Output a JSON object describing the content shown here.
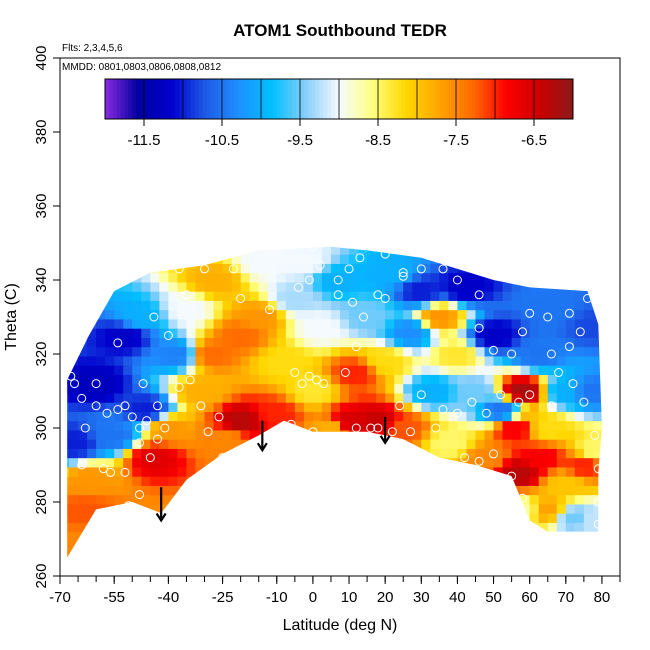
{
  "chart_data": {
    "type": "heatmap",
    "title": "ATOM1 Southbound TEDR",
    "annotations": [
      "Flts: 2,3,4,5,6",
      "MMDD: 0801,0803,0806,0808,0812"
    ],
    "xlabel": "Latitude (deg N)",
    "ylabel": "Theta (C)",
    "xlim": [
      -70,
      85
    ],
    "ylim": [
      260,
      400
    ],
    "x_ticks": [
      -70,
      -55,
      -40,
      -25,
      -10,
      0,
      10,
      20,
      30,
      40,
      50,
      60,
      70,
      80
    ],
    "x_tick_labels": [
      "-70",
      "-55",
      "-40",
      "-25",
      "-10",
      "0",
      "10",
      "20",
      "30",
      "40",
      "50",
      "60",
      "70",
      "80"
    ],
    "y_ticks": [
      260,
      280,
      300,
      320,
      340,
      360,
      380,
      400
    ],
    "y_tick_labels": [
      "260",
      "280",
      "300",
      "320",
      "340",
      "360",
      "380",
      "400"
    ],
    "colorbar": {
      "min": -12,
      "max": -6,
      "ticks": [
        -11.5,
        -10.5,
        -9.5,
        -8.5,
        -7.5,
        -6.5
      ],
      "tick_labels": [
        "-11.5",
        "-10.5",
        "-9.5",
        "-8.5",
        "-7.5",
        "-6.5"
      ],
      "colors": [
        "#8a2be2",
        "#0000a0",
        "#0000cd",
        "#1e5ae6",
        "#1e90ff",
        "#00bfff",
        "#87cefa",
        "#f5faff",
        "#ffff80",
        "#ffd700",
        "#ffa500",
        "#ff6a00",
        "#ff0000",
        "#cc0000",
        "#8b1a1a"
      ]
    },
    "coverage_boundary": [
      [
        -68,
        265
      ],
      [
        -60,
        278
      ],
      [
        -50,
        280
      ],
      [
        -42,
        277
      ],
      [
        -35,
        286
      ],
      [
        -25,
        293
      ],
      [
        -15,
        298
      ],
      [
        -8,
        302
      ],
      [
        0,
        299
      ],
      [
        15,
        299
      ],
      [
        25,
        297
      ],
      [
        35,
        292
      ],
      [
        45,
        290
      ],
      [
        55,
        287
      ],
      [
        60,
        275
      ],
      [
        65,
        272
      ],
      [
        79,
        272
      ],
      [
        79,
        288
      ],
      [
        80,
        300
      ],
      [
        79,
        328
      ],
      [
        76,
        337
      ],
      [
        60,
        338
      ],
      [
        50,
        340
      ],
      [
        40,
        343
      ],
      [
        30,
        346
      ],
      [
        15,
        348
      ],
      [
        5,
        349
      ],
      [
        -15,
        348
      ],
      [
        -30,
        344
      ],
      [
        -45,
        342
      ],
      [
        -55,
        337
      ],
      [
        -62,
        325
      ],
      [
        -68,
        313
      ]
    ],
    "features": [
      {
        "x": -63,
        "y": 278,
        "value": -7.2
      },
      {
        "x": -62,
        "y": 286,
        "value": -7.6
      },
      {
        "x": -66,
        "y": 296,
        "value": -11.0
      },
      {
        "x": -60,
        "y": 312,
        "value": -11.3
      },
      {
        "x": -55,
        "y": 298,
        "value": -10.5
      },
      {
        "x": -52,
        "y": 325,
        "value": -11.2
      },
      {
        "x": -48,
        "y": 330,
        "value": -10.0
      },
      {
        "x": -46,
        "y": 305,
        "value": -11.0
      },
      {
        "x": -44,
        "y": 292,
        "value": -6.6
      },
      {
        "x": -40,
        "y": 300,
        "value": -7.6
      },
      {
        "x": -38,
        "y": 320,
        "value": -10.4
      },
      {
        "x": -35,
        "y": 332,
        "value": -9.0
      },
      {
        "x": -31,
        "y": 310,
        "value": -7.8
      },
      {
        "x": -28,
        "y": 320,
        "value": -7.3
      },
      {
        "x": -27,
        "y": 340,
        "value": -7.8
      },
      {
        "x": -24,
        "y": 297,
        "value": -7.5
      },
      {
        "x": -20,
        "y": 302,
        "value": -6.3
      },
      {
        "x": -20,
        "y": 325,
        "value": -7.3
      },
      {
        "x": -15,
        "y": 330,
        "value": -7.6
      },
      {
        "x": -14,
        "y": 345,
        "value": -9.0
      },
      {
        "x": -10,
        "y": 304,
        "value": -7.0
      },
      {
        "x": -8,
        "y": 318,
        "value": -8.2
      },
      {
        "x": -5,
        "y": 335,
        "value": -9.3
      },
      {
        "x": -2,
        "y": 345,
        "value": -9.0
      },
      {
        "x": 0,
        "y": 310,
        "value": -8.3
      },
      {
        "x": 2,
        "y": 327,
        "value": -9.0
      },
      {
        "x": 5,
        "y": 300,
        "value": -7.8
      },
      {
        "x": 7,
        "y": 340,
        "value": -10.0
      },
      {
        "x": 10,
        "y": 302,
        "value": -6.5
      },
      {
        "x": 12,
        "y": 315,
        "value": -7.0
      },
      {
        "x": 15,
        "y": 330,
        "value": -9.5
      },
      {
        "x": 18,
        "y": 302,
        "value": -6.4
      },
      {
        "x": 20,
        "y": 318,
        "value": -8.2
      },
      {
        "x": 22,
        "y": 342,
        "value": -10.0
      },
      {
        "x": 25,
        "y": 300,
        "value": -7.2
      },
      {
        "x": 27,
        "y": 326,
        "value": -10.3
      },
      {
        "x": 30,
        "y": 337,
        "value": -11.0
      },
      {
        "x": 33,
        "y": 310,
        "value": -10.0
      },
      {
        "x": 35,
        "y": 330,
        "value": -7.6
      },
      {
        "x": 38,
        "y": 296,
        "value": -8.5
      },
      {
        "x": 40,
        "y": 320,
        "value": -8.3
      },
      {
        "x": 42,
        "y": 338,
        "value": -11.2
      },
      {
        "x": 45,
        "y": 310,
        "value": -9.5
      },
      {
        "x": 48,
        "y": 292,
        "value": -7.5
      },
      {
        "x": 50,
        "y": 325,
        "value": -11.2
      },
      {
        "x": 52,
        "y": 305,
        "value": -10.5
      },
      {
        "x": 56,
        "y": 300,
        "value": -6.8
      },
      {
        "x": 57,
        "y": 288,
        "value": -6.3
      },
      {
        "x": 58,
        "y": 310,
        "value": -6.2
      },
      {
        "x": 58,
        "y": 278,
        "value": -8.7
      },
      {
        "x": 62,
        "y": 320,
        "value": -10.5
      },
      {
        "x": 63,
        "y": 292,
        "value": -6.8
      },
      {
        "x": 65,
        "y": 300,
        "value": -8.2
      },
      {
        "x": 65,
        "y": 278,
        "value": -7.7
      },
      {
        "x": 68,
        "y": 332,
        "value": -10.5
      },
      {
        "x": 70,
        "y": 285,
        "value": -8.0
      },
      {
        "x": 70,
        "y": 310,
        "value": -10.0
      },
      {
        "x": 72,
        "y": 276,
        "value": -9.5
      },
      {
        "x": 75,
        "y": 290,
        "value": -7.0
      },
      {
        "x": 77,
        "y": 310,
        "value": -10.5
      },
      {
        "x": 78,
        "y": 275,
        "value": -9.2
      },
      {
        "x": 78,
        "y": 294,
        "value": -8.5
      },
      {
        "x": 77,
        "y": 328,
        "value": -10.8
      },
      {
        "x": -65,
        "y": 268,
        "value": -7.5
      }
    ],
    "observation_points": [
      [
        -67,
        314
      ],
      [
        -66,
        312
      ],
      [
        -64,
        308
      ],
      [
        -60,
        306
      ],
      [
        -57,
        304
      ],
      [
        -54,
        305
      ],
      [
        -52,
        306
      ],
      [
        -50,
        303
      ],
      [
        -48,
        300
      ],
      [
        -46,
        302
      ],
      [
        -56,
        288
      ],
      [
        -52,
        288
      ],
      [
        -48,
        296
      ],
      [
        -45,
        292
      ],
      [
        -43,
        297
      ],
      [
        -41,
        300
      ],
      [
        -47,
        312
      ],
      [
        -43,
        306
      ],
      [
        -37,
        311
      ],
      [
        -34,
        313
      ],
      [
        -31,
        306
      ],
      [
        -29,
        299
      ],
      [
        -26,
        303
      ],
      [
        -25,
        292
      ],
      [
        -35,
        336
      ],
      [
        -37,
        343
      ],
      [
        -30,
        343
      ],
      [
        -22,
        343
      ],
      [
        -20,
        335
      ],
      [
        -12,
        332
      ],
      [
        -5,
        315
      ],
      [
        -3,
        312
      ],
      [
        -1,
        314
      ],
      [
        1,
        313
      ],
      [
        3,
        312
      ],
      [
        0,
        299
      ],
      [
        -6,
        301
      ],
      [
        9,
        315
      ],
      [
        12,
        322
      ],
      [
        14,
        330
      ],
      [
        12,
        300
      ],
      [
        16,
        300
      ],
      [
        18,
        300
      ],
      [
        22,
        299
      ],
      [
        24,
        306
      ],
      [
        30,
        309
      ],
      [
        36,
        305
      ],
      [
        40,
        304
      ],
      [
        44,
        307
      ],
      [
        48,
        304
      ],
      [
        52,
        309
      ],
      [
        57,
        307
      ],
      [
        60,
        309
      ],
      [
        66,
        306
      ],
      [
        72,
        312
      ],
      [
        75,
        307
      ],
      [
        78,
        298
      ],
      [
        79,
        289
      ],
      [
        79,
        280
      ],
      [
        79,
        274
      ],
      [
        55,
        287
      ],
      [
        58,
        281
      ],
      [
        68,
        315
      ],
      [
        66,
        320
      ],
      [
        71,
        322
      ],
      [
        74,
        326
      ],
      [
        71,
        331
      ],
      [
        76,
        335
      ],
      [
        65,
        330
      ],
      [
        60,
        331
      ],
      [
        58,
        326
      ],
      [
        55,
        320
      ],
      [
        50,
        321
      ],
      [
        46,
        327
      ],
      [
        46,
        336
      ],
      [
        40,
        340
      ],
      [
        36,
        343
      ],
      [
        30,
        343
      ],
      [
        25,
        341
      ],
      [
        20,
        335
      ],
      [
        18,
        336
      ],
      [
        11,
        334
      ],
      [
        7,
        340
      ],
      [
        2,
        344
      ],
      [
        -1,
        340
      ],
      [
        -4,
        338
      ],
      [
        0,
        349
      ],
      [
        13,
        346
      ],
      [
        20,
        347
      ],
      [
        25,
        342
      ],
      [
        -44,
        330
      ],
      [
        -40,
        325
      ],
      [
        -60,
        312
      ],
      [
        -54,
        323
      ],
      [
        -63,
        300
      ],
      [
        -64,
        290
      ],
      [
        -58,
        289
      ],
      [
        -54,
        278
      ],
      [
        -51,
        279
      ],
      [
        -48,
        282
      ],
      [
        39,
        287
      ],
      [
        42,
        292
      ],
      [
        46,
        291
      ],
      [
        50,
        293
      ],
      [
        27,
        299
      ],
      [
        34,
        300
      ],
      [
        10,
        343
      ],
      [
        7,
        336
      ]
    ],
    "arrows": [
      {
        "x": -42,
        "y_start": 284,
        "y_end": 275
      },
      {
        "x": -14,
        "y_start": 302,
        "y_end": 294
      },
      {
        "x": 20,
        "y_start": 303,
        "y_end": 296
      }
    ]
  }
}
